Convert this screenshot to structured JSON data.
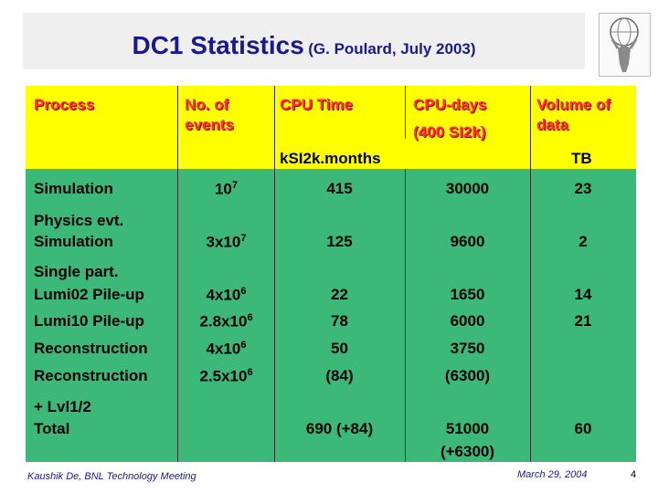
{
  "title": {
    "main": "DC1 Statistics",
    "sub": "(G. Poulard, July 2003)"
  },
  "header": {
    "process": "Process",
    "events_l1": "No. of",
    "events_l2": "events",
    "cpu_time": "CPU Time",
    "cpu_days_l1": "CPU-days",
    "cpu_days_l2": "(400 SI2k)",
    "volume_l1": "Volume of",
    "volume_l2": "data",
    "unit_ksi2k": "kSI2k.months",
    "unit_tb": "TB"
  },
  "rows": [
    {
      "proc_l1": "Simulation",
      "proc_l2": "",
      "events_base": "10",
      "events_exp": "7",
      "cpu": "415",
      "days": "30000",
      "vol": "23"
    },
    {
      "proc_l1": "Physics evt.",
      "proc_l2": "Simulation",
      "events_base": "3x10",
      "events_exp": "7",
      "cpu": "125",
      "days": "9600",
      "vol": "2"
    },
    {
      "proc_l1": "Single part.",
      "proc_l2": "Lumi02 Pile-up",
      "events_base": "4x10",
      "events_exp": "6",
      "cpu": "22",
      "days": "1650",
      "vol": "14"
    },
    {
      "proc_l1": "Lumi10 Pile-up",
      "proc_l2": "",
      "events_base": "2.8x10",
      "events_exp": "6",
      "cpu": "78",
      "days": "6000",
      "vol": "21"
    },
    {
      "proc_l1": "Reconstruction",
      "proc_l2": "",
      "events_base": "4x10",
      "events_exp": "6",
      "cpu": "50",
      "days": "3750",
      "vol": ""
    },
    {
      "proc_l1": "Reconstruction",
      "proc_l2": "+ Lvl1/2",
      "events_base": "2.5x10",
      "events_exp": "6",
      "cpu": "(84)",
      "days": "(6300)",
      "vol": ""
    }
  ],
  "total": {
    "label": "Total",
    "cpu": "690 (+84)",
    "days_l1": "51000",
    "days_l2": "(+6300)",
    "vol": "60"
  },
  "footer": {
    "author": "Kaushik De, BNL Technology Meeting",
    "date": "March 29, 2004",
    "page": "4"
  }
}
